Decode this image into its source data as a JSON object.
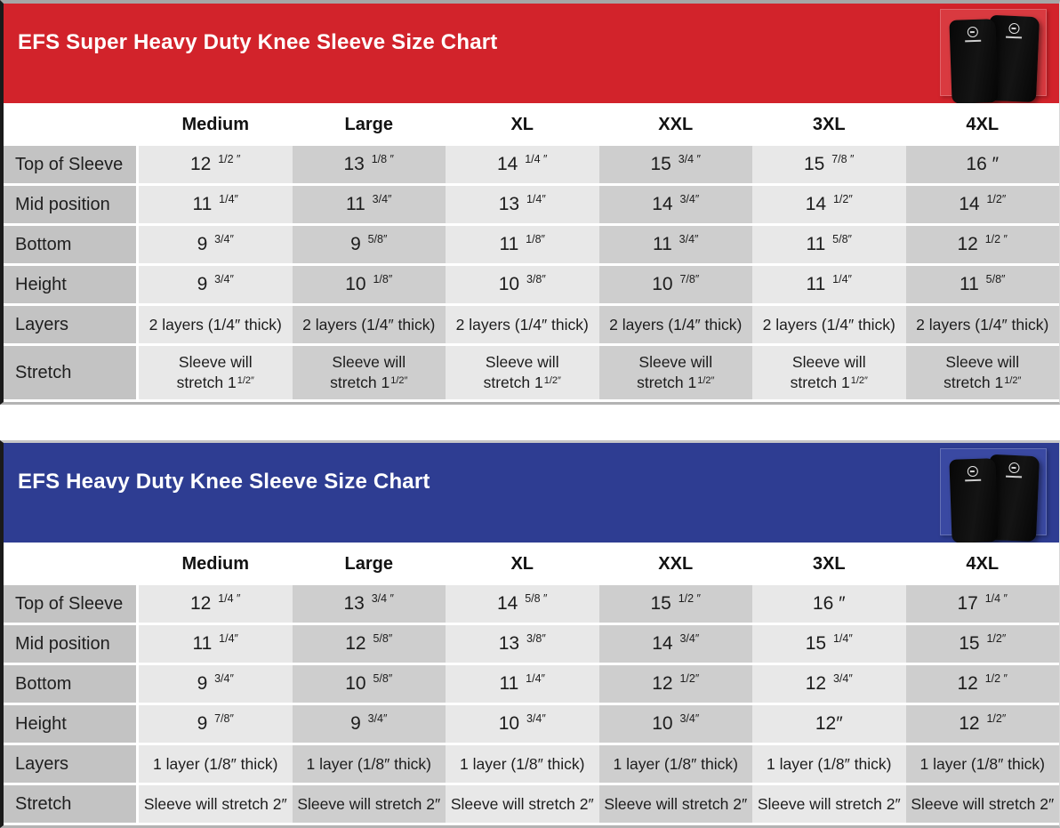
{
  "chart_data": [
    {
      "type": "table",
      "title": "EFS Super Heavy Duty Knee Sleeve Size Chart",
      "theme_color": "#d2232b",
      "photo_bg": "#d93a40",
      "columns": [
        "Medium",
        "Large",
        "XL",
        "XXL",
        "3XL",
        "4XL"
      ],
      "rows": [
        {
          "label": "Top of Sleeve",
          "values": [
            "12 {1/2 ″}",
            "13 {1/8 ″}",
            "14 {1/4 ″}",
            "15 {3/4 ″}",
            "15 {7/8 ″}",
            "16 ″"
          ]
        },
        {
          "label": "Mid position",
          "values": [
            "11 {1/4″}",
            "11 {3/4″}",
            "13 {1/4″}",
            "14 {3/4″}",
            "14 {1/2″}",
            "14 {1/2″}"
          ]
        },
        {
          "label": "Bottom",
          "values": [
            "9 {3/4″}",
            "9 {5/8″}",
            "11 {1/8″}",
            "11 {3/4″}",
            "11 {5/8″}",
            "12 {1/2 ″}"
          ]
        },
        {
          "label": "Height",
          "values": [
            "9 {3/4″}",
            "10 {1/8″}",
            "10 {3/8″}",
            "10 {7/8″}",
            "11 {1/4″}",
            "11 {5/8″}"
          ]
        },
        {
          "label": "Layers",
          "values": [
            "2 layers (1/4″ thick)",
            "2 layers (1/4″ thick)",
            "2 layers (1/4″ thick)",
            "2 layers (1/4″ thick)",
            "2 layers (1/4″ thick)",
            "2 layers (1/4″ thick)"
          ]
        },
        {
          "label": "Stretch",
          "values": [
            "Sleeve will\nstretch 1{1/2″}",
            "Sleeve will\nstretch 1{1/2″}",
            "Sleeve will\nstretch 1{1/2″}",
            "Sleeve will\nstretch 1{1/2″}",
            "Sleeve will\nstretch 1{1/2″}",
            "Sleeve will\nstretch 1{1/2″}"
          ]
        }
      ]
    },
    {
      "type": "table",
      "title": "EFS Heavy Duty Knee Sleeve Size Chart",
      "theme_color": "#2e3d92",
      "photo_bg": "#3a49a2",
      "columns": [
        "Medium",
        "Large",
        "XL",
        "XXL",
        "3XL",
        "4XL"
      ],
      "rows": [
        {
          "label": "Top of Sleeve",
          "values": [
            "12 {1/4 ″}",
            "13 {3/4 ″}",
            "14 {5/8 ″}",
            "15 {1/2 ″}",
            "16 ″",
            "17 {1/4 ″}"
          ]
        },
        {
          "label": "Mid position",
          "values": [
            "11 {1/4″}",
            "12 {5/8″}",
            "13 {3/8″}",
            "14 {3/4″}",
            "15 {1/4″}",
            "15 {1/2″}"
          ]
        },
        {
          "label": "Bottom",
          "values": [
            "9 {3/4″}",
            "10 {5/8″}",
            "11 {1/4″}",
            "12 {1/2″}",
            "12 {3/4″}",
            "12 {1/2 ″}"
          ]
        },
        {
          "label": "Height",
          "values": [
            "9 {7/8″}",
            "9 {3/4″}",
            "10 {3/4″}",
            "10 {3/4″}",
            "12″",
            "12 {1/2″}"
          ]
        },
        {
          "label": "Layers",
          "values": [
            "1 layer (1/8″ thick)",
            "1 layer (1/8″ thick)",
            "1 layer (1/8″ thick)",
            "1 layer (1/8″ thick)",
            "1 layer (1/8″ thick)",
            "1 layer (1/8″ thick)"
          ]
        },
        {
          "label": "Stretch",
          "values": [
            "Sleeve will stretch 2″",
            "Sleeve will stretch 2″",
            "Sleeve will stretch 2″",
            "Sleeve will stretch 2″",
            "Sleeve will stretch 2″",
            "Sleeve will stretch 2″"
          ]
        }
      ]
    }
  ]
}
